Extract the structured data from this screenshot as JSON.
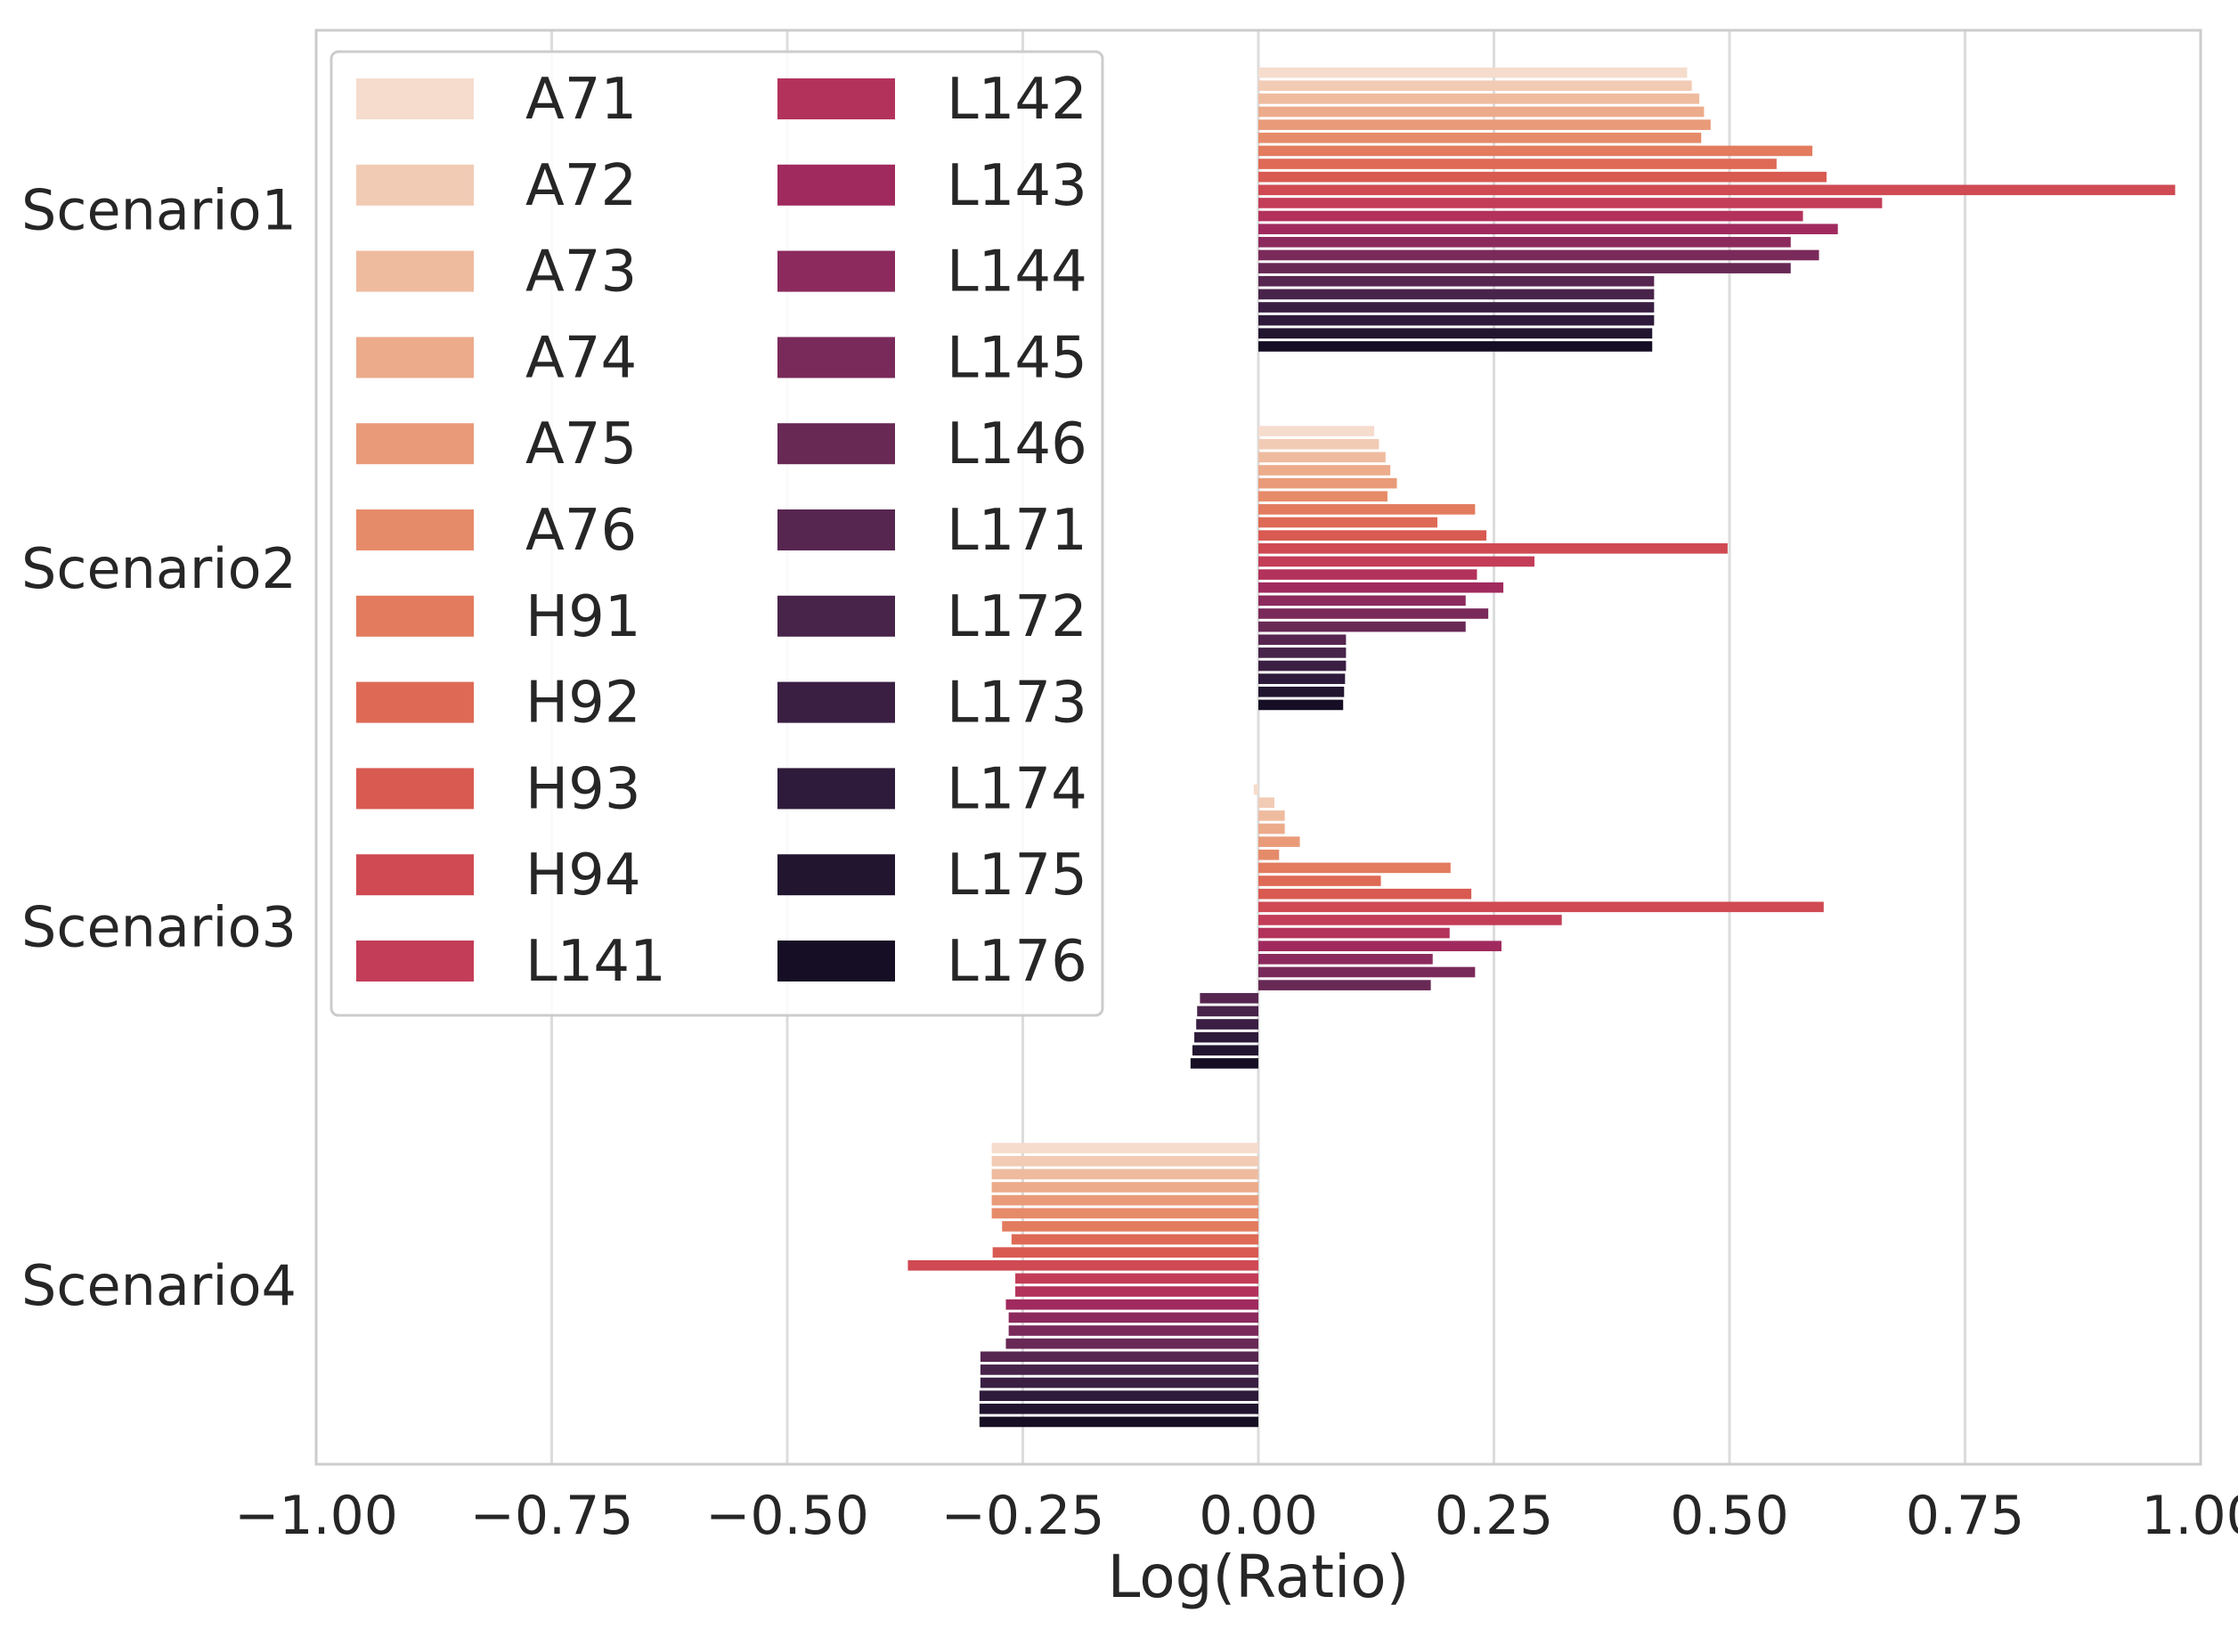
{
  "chart_data": {
    "type": "bar",
    "orientation": "horizontal",
    "title": "",
    "xlabel": "Log(Ratio)",
    "ylabel": "",
    "xlim": [
      -1.0,
      1.0
    ],
    "xticks": [
      -1.0,
      -0.75,
      -0.5,
      -0.25,
      0.0,
      0.25,
      0.5,
      0.75,
      1.0
    ],
    "xtick_labels": [
      "−1.00",
      "−0.75",
      "−0.50",
      "−0.25",
      "0.00",
      "0.25",
      "0.50",
      "0.75",
      "1.00"
    ],
    "grid": "vertical",
    "legend_position": "upper-left",
    "legend_columns": 2,
    "categories": [
      "Scenario1",
      "Scenario2",
      "Scenario3",
      "Scenario4"
    ],
    "series": [
      {
        "name": "A71",
        "color": "#f5dccd",
        "values": [
          0.455,
          0.123,
          -0.005,
          -0.283
        ]
      },
      {
        "name": "A72",
        "color": "#f2cbb5",
        "values": [
          0.46,
          0.128,
          0.017,
          -0.283
        ]
      },
      {
        "name": "A73",
        "color": "#efbb9f",
        "values": [
          0.468,
          0.135,
          0.028,
          -0.283
        ]
      },
      {
        "name": "A74",
        "color": "#ecab8b",
        "values": [
          0.473,
          0.14,
          0.028,
          -0.283
        ]
      },
      {
        "name": "A75",
        "color": "#e99b79",
        "values": [
          0.48,
          0.147,
          0.044,
          -0.283
        ]
      },
      {
        "name": "A76",
        "color": "#e68b69",
        "values": [
          0.47,
          0.137,
          0.022,
          -0.283
        ]
      },
      {
        "name": "H91",
        "color": "#e37b5e",
        "values": [
          0.588,
          0.23,
          0.204,
          -0.272
        ]
      },
      {
        "name": "H92",
        "color": "#de6a55",
        "values": [
          0.55,
          0.19,
          0.13,
          -0.262
        ]
      },
      {
        "name": "H93",
        "color": "#d85a51",
        "values": [
          0.603,
          0.242,
          0.226,
          -0.282
        ]
      },
      {
        "name": "H94",
        "color": "#cf4a53",
        "values": [
          0.973,
          0.498,
          0.6,
          -0.372
        ]
      },
      {
        "name": "L141",
        "color": "#c33d58",
        "values": [
          0.662,
          0.293,
          0.322,
          -0.258
        ]
      },
      {
        "name": "L142",
        "color": "#b3325c",
        "values": [
          0.578,
          0.232,
          0.203,
          -0.258
        ]
      },
      {
        "name": "L143",
        "color": "#a02a5e",
        "values": [
          0.615,
          0.26,
          0.258,
          -0.268
        ]
      },
      {
        "name": "L144",
        "color": "#8c2a5d",
        "values": [
          0.565,
          0.22,
          0.185,
          -0.265
        ]
      },
      {
        "name": "L145",
        "color": "#7a2a5a",
        "values": [
          0.595,
          0.244,
          0.23,
          -0.265
        ]
      },
      {
        "name": "L146",
        "color": "#682955",
        "values": [
          0.565,
          0.22,
          0.183,
          -0.268
        ]
      },
      {
        "name": "L171",
        "color": "#572650",
        "values": [
          0.42,
          0.093,
          -0.062,
          -0.295
        ]
      },
      {
        "name": "L172",
        "color": "#48234a",
        "values": [
          0.42,
          0.093,
          -0.065,
          -0.295
        ]
      },
      {
        "name": "L173",
        "color": "#3a1f43",
        "values": [
          0.42,
          0.093,
          -0.066,
          -0.295
        ]
      },
      {
        "name": "L174",
        "color": "#2e1a3a",
        "values": [
          0.42,
          0.092,
          -0.068,
          -0.296
        ]
      },
      {
        "name": "L175",
        "color": "#221530",
        "values": [
          0.418,
          0.091,
          -0.07,
          -0.296
        ]
      },
      {
        "name": "L176",
        "color": "#160e24",
        "values": [
          0.418,
          0.09,
          -0.072,
          -0.296
        ]
      }
    ]
  }
}
